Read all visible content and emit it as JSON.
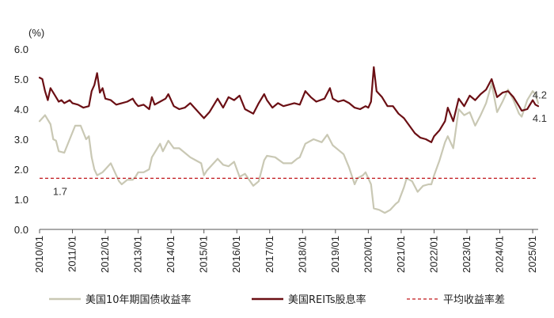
{
  "chart_data": {
    "type": "line",
    "title": "",
    "ylabel": "(%)",
    "ylim": [
      0,
      6
    ],
    "yticks": [
      0,
      1,
      2,
      3,
      4,
      5,
      6
    ],
    "ytick_labels": [
      "0.0",
      "1.0",
      "2.0",
      "3.0",
      "4.0",
      "5.0",
      "6.0"
    ],
    "xlim": [
      "2010-01",
      "2025-03"
    ],
    "xtick_labels": [
      "2010/01",
      "2011/01",
      "2012/01",
      "2013/01",
      "2014/01",
      "2015/01",
      "2016/01",
      "2017/01",
      "2018/01",
      "2019/01",
      "2020/01",
      "2021/01",
      "2022/01",
      "2023/01",
      "2024/01",
      "2025/01"
    ],
    "grid": false,
    "legend_position": "bottom",
    "series": [
      {
        "name": "美国10年期国债收益率",
        "color": "#c9c8b4",
        "points": [
          [
            "2010-01",
            3.6
          ],
          [
            "2010-03",
            3.8
          ],
          [
            "2010-05",
            3.5
          ],
          [
            "2010-06",
            3.0
          ],
          [
            "2010-07",
            2.95
          ],
          [
            "2010-08",
            2.6
          ],
          [
            "2010-10",
            2.55
          ],
          [
            "2010-12",
            3.0
          ],
          [
            "2011-02",
            3.45
          ],
          [
            "2011-04",
            3.45
          ],
          [
            "2011-06",
            3.0
          ],
          [
            "2011-07",
            3.1
          ],
          [
            "2011-08",
            2.4
          ],
          [
            "2011-09",
            2.0
          ],
          [
            "2011-10",
            1.8
          ],
          [
            "2011-12",
            1.9
          ],
          [
            "2012-01",
            2.0
          ],
          [
            "2012-03",
            2.2
          ],
          [
            "2012-05",
            1.8
          ],
          [
            "2012-06",
            1.6
          ],
          [
            "2012-07",
            1.5
          ],
          [
            "2012-09",
            1.65
          ],
          [
            "2012-11",
            1.65
          ],
          [
            "2012-12",
            1.75
          ],
          [
            "2013-01",
            1.9
          ],
          [
            "2013-03",
            1.9
          ],
          [
            "2013-05",
            2.0
          ],
          [
            "2013-06",
            2.4
          ],
          [
            "2013-07",
            2.55
          ],
          [
            "2013-09",
            2.85
          ],
          [
            "2013-10",
            2.6
          ],
          [
            "2013-12",
            2.95
          ],
          [
            "2014-02",
            2.7
          ],
          [
            "2014-04",
            2.7
          ],
          [
            "2014-06",
            2.55
          ],
          [
            "2014-08",
            2.4
          ],
          [
            "2014-10",
            2.3
          ],
          [
            "2014-12",
            2.2
          ],
          [
            "2015-01",
            1.8
          ],
          [
            "2015-02",
            1.95
          ],
          [
            "2015-03",
            2.05
          ],
          [
            "2015-06",
            2.35
          ],
          [
            "2015-08",
            2.15
          ],
          [
            "2015-10",
            2.1
          ],
          [
            "2015-12",
            2.25
          ],
          [
            "2016-02",
            1.75
          ],
          [
            "2016-04",
            1.85
          ],
          [
            "2016-07",
            1.45
          ],
          [
            "2016-09",
            1.6
          ],
          [
            "2016-11",
            2.3
          ],
          [
            "2016-12",
            2.45
          ],
          [
            "2017-03",
            2.4
          ],
          [
            "2017-06",
            2.2
          ],
          [
            "2017-09",
            2.2
          ],
          [
            "2017-11",
            2.35
          ],
          [
            "2017-12",
            2.4
          ],
          [
            "2018-02",
            2.85
          ],
          [
            "2018-05",
            3.0
          ],
          [
            "2018-08",
            2.9
          ],
          [
            "2018-10",
            3.15
          ],
          [
            "2018-12",
            2.8
          ],
          [
            "2019-02",
            2.65
          ],
          [
            "2019-04",
            2.5
          ],
          [
            "2019-06",
            2.05
          ],
          [
            "2019-08",
            1.5
          ],
          [
            "2019-09",
            1.7
          ],
          [
            "2019-11",
            1.8
          ],
          [
            "2019-12",
            1.9
          ],
          [
            "2020-02",
            1.5
          ],
          [
            "2020-03",
            0.7
          ],
          [
            "2020-05",
            0.65
          ],
          [
            "2020-07",
            0.55
          ],
          [
            "2020-09",
            0.65
          ],
          [
            "2020-11",
            0.85
          ],
          [
            "2020-12",
            0.92
          ],
          [
            "2021-02",
            1.4
          ],
          [
            "2021-03",
            1.7
          ],
          [
            "2021-05",
            1.6
          ],
          [
            "2021-07",
            1.25
          ],
          [
            "2021-09",
            1.45
          ],
          [
            "2021-11",
            1.5
          ],
          [
            "2021-12",
            1.5
          ],
          [
            "2022-01",
            1.8
          ],
          [
            "2022-03",
            2.3
          ],
          [
            "2022-05",
            2.9
          ],
          [
            "2022-06",
            3.1
          ],
          [
            "2022-08",
            2.7
          ],
          [
            "2022-10",
            4.0
          ],
          [
            "2022-12",
            3.8
          ],
          [
            "2023-02",
            3.9
          ],
          [
            "2023-04",
            3.45
          ],
          [
            "2023-06",
            3.8
          ],
          [
            "2023-08",
            4.2
          ],
          [
            "2023-10",
            4.85
          ],
          [
            "2023-12",
            3.9
          ],
          [
            "2024-02",
            4.25
          ],
          [
            "2024-04",
            4.65
          ],
          [
            "2024-06",
            4.3
          ],
          [
            "2024-08",
            3.85
          ],
          [
            "2024-09",
            3.75
          ],
          [
            "2024-11",
            4.3
          ],
          [
            "2025-01",
            4.6
          ],
          [
            "2025-02",
            4.5
          ],
          [
            "2025-03",
            4.2
          ]
        ]
      },
      {
        "name": "美国REITs股息率",
        "color": "#6b0f14",
        "points": [
          [
            "2010-01",
            5.05
          ],
          [
            "2010-02",
            5.0
          ],
          [
            "2010-03",
            4.6
          ],
          [
            "2010-04",
            4.3
          ],
          [
            "2010-05",
            4.7
          ],
          [
            "2010-06",
            4.55
          ],
          [
            "2010-07",
            4.4
          ],
          [
            "2010-08",
            4.25
          ],
          [
            "2010-09",
            4.3
          ],
          [
            "2010-10",
            4.2
          ],
          [
            "2010-12",
            4.3
          ],
          [
            "2011-01",
            4.2
          ],
          [
            "2011-03",
            4.15
          ],
          [
            "2011-05",
            4.05
          ],
          [
            "2011-07",
            4.1
          ],
          [
            "2011-08",
            4.6
          ],
          [
            "2011-09",
            4.8
          ],
          [
            "2011-10",
            5.2
          ],
          [
            "2011-11",
            4.55
          ],
          [
            "2011-12",
            4.7
          ],
          [
            "2012-01",
            4.35
          ],
          [
            "2012-03",
            4.3
          ],
          [
            "2012-05",
            4.15
          ],
          [
            "2012-07",
            4.2
          ],
          [
            "2012-09",
            4.25
          ],
          [
            "2012-11",
            4.35
          ],
          [
            "2012-12",
            4.2
          ],
          [
            "2013-01",
            4.1
          ],
          [
            "2013-03",
            4.15
          ],
          [
            "2013-05",
            4.0
          ],
          [
            "2013-06",
            4.4
          ],
          [
            "2013-07",
            4.15
          ],
          [
            "2013-09",
            4.25
          ],
          [
            "2013-11",
            4.35
          ],
          [
            "2013-12",
            4.5
          ],
          [
            "2014-02",
            4.1
          ],
          [
            "2014-04",
            4.0
          ],
          [
            "2014-06",
            4.05
          ],
          [
            "2014-08",
            4.2
          ],
          [
            "2014-10",
            4.0
          ],
          [
            "2014-12",
            3.8
          ],
          [
            "2015-01",
            3.7
          ],
          [
            "2015-03",
            3.9
          ],
          [
            "2015-06",
            4.35
          ],
          [
            "2015-08",
            4.05
          ],
          [
            "2015-10",
            4.4
          ],
          [
            "2015-12",
            4.3
          ],
          [
            "2016-02",
            4.45
          ],
          [
            "2016-04",
            4.0
          ],
          [
            "2016-07",
            3.85
          ],
          [
            "2016-09",
            4.2
          ],
          [
            "2016-11",
            4.5
          ],
          [
            "2016-12",
            4.3
          ],
          [
            "2017-02",
            4.05
          ],
          [
            "2017-04",
            4.2
          ],
          [
            "2017-06",
            4.1
          ],
          [
            "2017-08",
            4.15
          ],
          [
            "2017-10",
            4.2
          ],
          [
            "2017-12",
            4.15
          ],
          [
            "2018-02",
            4.6
          ],
          [
            "2018-04",
            4.4
          ],
          [
            "2018-06",
            4.25
          ],
          [
            "2018-09",
            4.35
          ],
          [
            "2018-11",
            4.7
          ],
          [
            "2018-12",
            4.35
          ],
          [
            "2019-02",
            4.25
          ],
          [
            "2019-04",
            4.3
          ],
          [
            "2019-06",
            4.2
          ],
          [
            "2019-08",
            4.05
          ],
          [
            "2019-10",
            4.0
          ],
          [
            "2019-12",
            4.1
          ],
          [
            "2020-01",
            4.05
          ],
          [
            "2020-02",
            4.25
          ],
          [
            "2020-03",
            5.4
          ],
          [
            "2020-04",
            4.6
          ],
          [
            "2020-06",
            4.4
          ],
          [
            "2020-08",
            4.1
          ],
          [
            "2020-10",
            4.1
          ],
          [
            "2020-12",
            3.85
          ],
          [
            "2021-02",
            3.7
          ],
          [
            "2021-04",
            3.45
          ],
          [
            "2021-06",
            3.2
          ],
          [
            "2021-08",
            3.05
          ],
          [
            "2021-10",
            3.0
          ],
          [
            "2021-12",
            2.9
          ],
          [
            "2022-01",
            3.1
          ],
          [
            "2022-03",
            3.3
          ],
          [
            "2022-05",
            3.6
          ],
          [
            "2022-06",
            4.05
          ],
          [
            "2022-08",
            3.6
          ],
          [
            "2022-10",
            4.35
          ],
          [
            "2022-12",
            4.1
          ],
          [
            "2023-02",
            4.45
          ],
          [
            "2023-04",
            4.3
          ],
          [
            "2023-06",
            4.5
          ],
          [
            "2023-08",
            4.65
          ],
          [
            "2023-10",
            5.0
          ],
          [
            "2023-12",
            4.4
          ],
          [
            "2024-02",
            4.55
          ],
          [
            "2024-04",
            4.6
          ],
          [
            "2024-06",
            4.4
          ],
          [
            "2024-08",
            4.1
          ],
          [
            "2024-09",
            3.95
          ],
          [
            "2024-11",
            4.0
          ],
          [
            "2025-01",
            4.3
          ],
          [
            "2025-02",
            4.15
          ],
          [
            "2025-03",
            4.1
          ]
        ]
      },
      {
        "name": "平均收益率差",
        "color": "#c0161b",
        "dashed": true,
        "value": 1.7
      }
    ],
    "annotations": [
      {
        "text": "4.2",
        "x": "2025-03",
        "y": 4.2,
        "anchor": "above"
      },
      {
        "text": "4.1",
        "x": "2025-03",
        "y": 4.1,
        "anchor": "below"
      },
      {
        "text": "1.7",
        "x": "2010-03",
        "y": 1.7,
        "anchor": "below"
      }
    ]
  }
}
